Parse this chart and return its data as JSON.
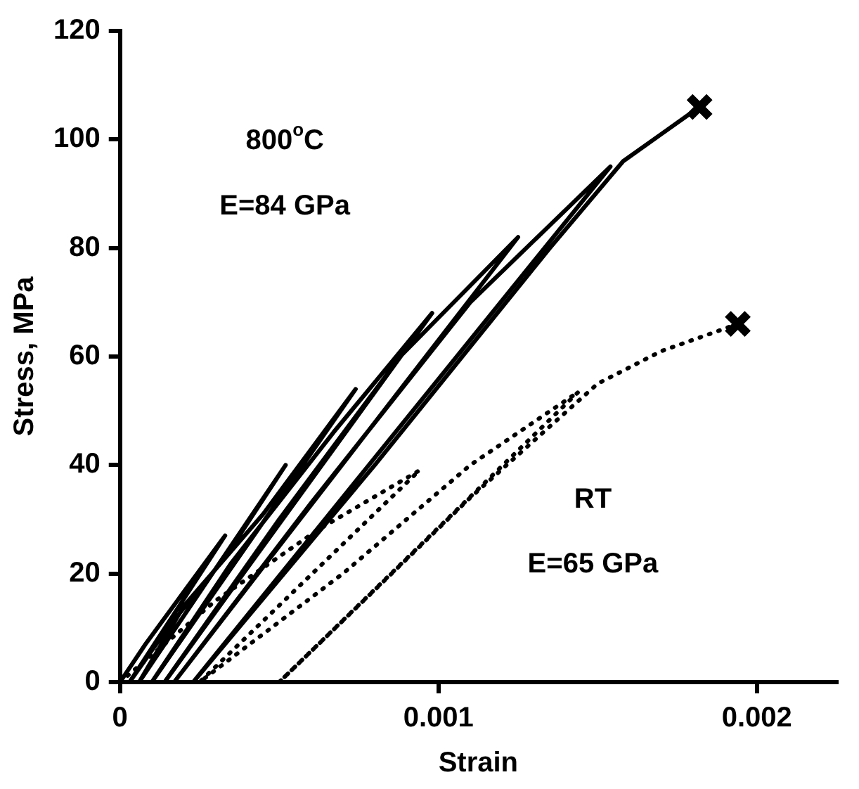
{
  "chart_data": {
    "type": "line",
    "xlabel": "Strain",
    "ylabel": "Stress, MPa",
    "xlim": [
      0,
      0.00225
    ],
    "xticks": [
      0,
      0.001,
      0.002
    ],
    "ylim": [
      0,
      120
    ],
    "yticks": [
      0,
      20,
      40,
      60,
      80,
      100,
      120
    ],
    "grid": false,
    "legend": false,
    "marker": "none",
    "annotations": [
      "800$^{o}$C",
      "E=84 GPa",
      "RT",
      "E=65 GPa"
    ],
    "series": [
      {
        "color": "#000000",
        "line_style": "solid",
        "x": [
          0,
          8e-05,
          0.00018,
          0.00033,
          3e-05,
          0.00015,
          0.00033,
          0.00052,
          6e-05,
          0.0002,
          0.00045,
          0.00074,
          0.0001,
          0.00035,
          0.00067,
          0.00098,
          0.00014,
          0.0005,
          0.00088,
          0.00125,
          0.00017,
          0.0006,
          0.0011,
          0.00154,
          0.00023,
          0.0008,
          0.00135,
          0.00158,
          0.0017,
          0.00182
        ],
        "values": [
          0,
          7,
          15,
          27,
          0,
          10,
          23,
          40,
          0,
          14,
          31,
          54,
          0,
          22,
          46,
          68,
          0,
          30,
          60,
          82,
          0,
          33,
          70,
          95,
          0,
          40,
          80,
          96,
          101,
          106
        ]
      },
      {
        "color": "#000000",
        "line_style": "dotted",
        "x": [
          0,
          0.0003,
          0.00062,
          0.00094,
          0.00025,
          0.0007,
          0.0011,
          0.00144,
          0.0005,
          0.0011,
          0.0015,
          0.0017,
          0.00194
        ],
        "values": [
          0,
          15,
          28,
          39,
          0,
          20,
          40,
          53.5,
          0,
          34,
          55,
          61,
          66
        ]
      },
      {
        "type": "scatter",
        "color": "#000000",
        "marker": "cross",
        "x": [
          0.00182,
          0.00194
        ],
        "values": [
          106,
          66
        ]
      }
    ]
  }
}
